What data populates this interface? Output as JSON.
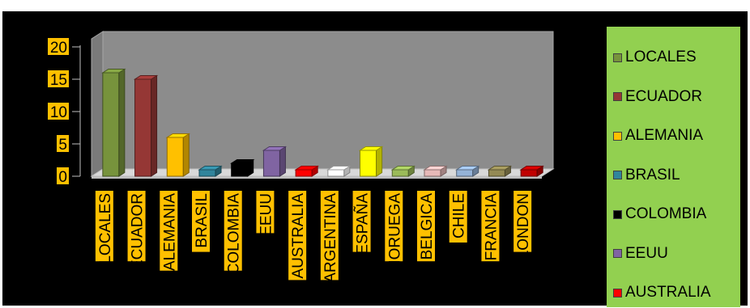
{
  "chart_data": {
    "type": "bar",
    "title": "",
    "xlabel": "",
    "ylabel": "",
    "ylim": [
      0,
      20
    ],
    "yticks": [
      "20",
      "15",
      "10",
      "5",
      "0"
    ],
    "grid": false,
    "legend_position": "right",
    "categories": [
      "LOCALES",
      "ECUADOR",
      "ALEMANIA",
      "BRASIL",
      "COLOMBIA",
      "EEUU",
      "AUSTRALIA",
      "ARGENTINA",
      "ESPAÑA",
      "NORUEGA",
      "BELGICA",
      "CHILE",
      "FRANCIA",
      "LONDON"
    ],
    "values": [
      16,
      15,
      6,
      1,
      2,
      4,
      1,
      1,
      4,
      1,
      1,
      1,
      1,
      1
    ],
    "colors": [
      "#77933c",
      "#953735",
      "#ffc000",
      "#31859c",
      "#000000",
      "#8064a2",
      "#ff0000",
      "#ffffff",
      "#ffff00",
      "#9bbb59",
      "#e6b9b8",
      "#95b3d7",
      "#948a54",
      "#c00000"
    ],
    "legend_entries": [
      "LOCALES",
      "ECUADOR",
      "ALEMANIA",
      "BRASIL",
      "COLOMBIA",
      "EEUU",
      "AUSTRALIA"
    ]
  },
  "theme": {
    "background": "#000000",
    "plot_wall": "#8c8c8c",
    "legend_background": "#92d050",
    "label_background": "#ffc000"
  }
}
